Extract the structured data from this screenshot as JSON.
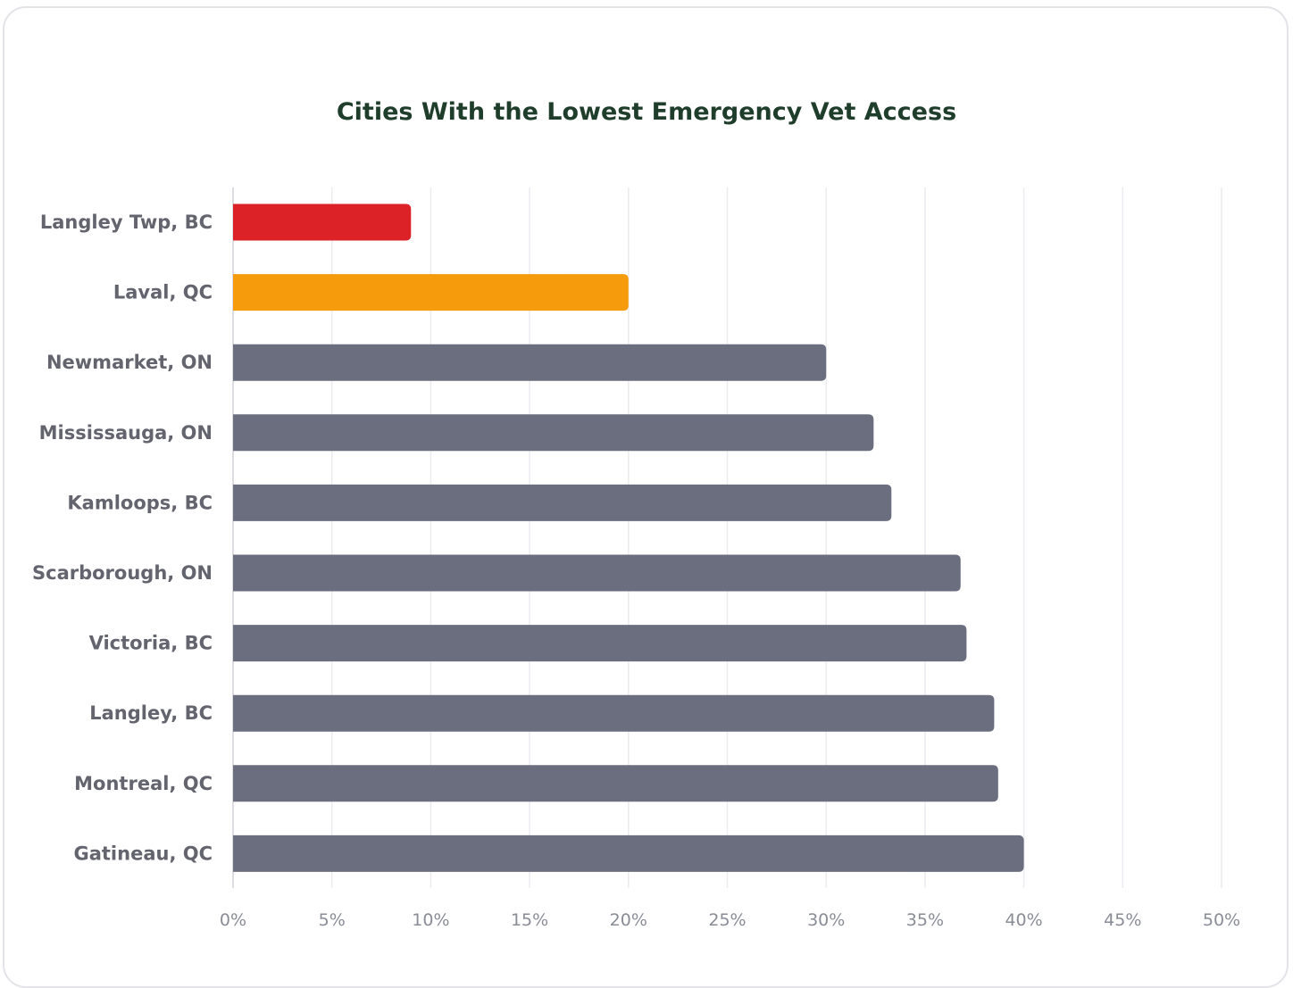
{
  "chart_data": {
    "type": "bar",
    "orientation": "horizontal",
    "title": "Cities With the Lowest Emergency Vet Access",
    "xlabel": "",
    "ylabel": "",
    "categories": [
      "Langley Twp, BC",
      "Laval, QC",
      "Newmarket, ON",
      "Mississauga, ON",
      "Kamloops, BC",
      "Scarborough, ON",
      "Victoria, BC",
      "Langley, BC",
      "Montreal, QC",
      "Gatineau, QC"
    ],
    "values": [
      9,
      20,
      30,
      32.4,
      33.3,
      36.8,
      37.1,
      38.5,
      38.7,
      40
    ],
    "bar_colors": [
      "#dc2127",
      "#f59b0c",
      "#6b6e7e",
      "#6b6e7e",
      "#6b6e7e",
      "#6b6e7e",
      "#6b6e7e",
      "#6b6e7e",
      "#6b6e7e",
      "#6b6e7e"
    ],
    "xlim": [
      0,
      50
    ],
    "xticks": [
      0,
      5,
      10,
      15,
      20,
      25,
      30,
      35,
      40,
      45,
      50
    ],
    "xtick_labels": [
      "0%",
      "5%",
      "10%",
      "15%",
      "20%",
      "25%",
      "30%",
      "35%",
      "40%",
      "45%",
      "50%"
    ],
    "grid": true,
    "legend": "none"
  }
}
